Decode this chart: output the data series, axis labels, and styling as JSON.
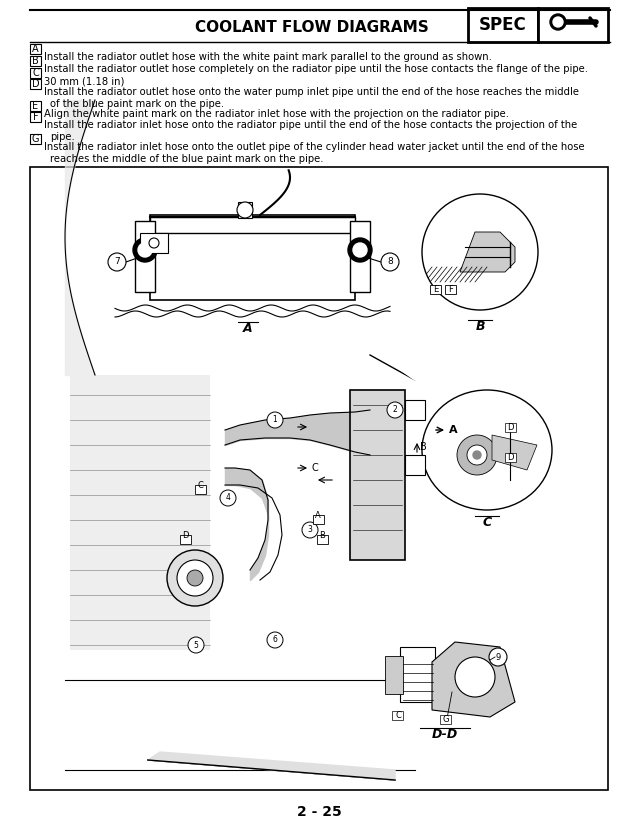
{
  "title": "COOLANT FLOW DIAGRAMS",
  "spec_label": "SPEC",
  "page_number": "2 - 25",
  "bg": "#ffffff",
  "black": "#000000",
  "gray_light": "#d8d8d8",
  "gray_mid": "#aaaaaa",
  "gray_dark": "#555555",
  "annot_lines": [
    [
      "A",
      "Install the radiator outlet hose with the white paint mark parallel to the ground as shown."
    ],
    [
      "B",
      "Install the radiator outlet hose completely on the radiator pipe until the hose contacts the flange of the pipe."
    ],
    [
      "C",
      "30 mm (1.18 in)"
    ],
    [
      "D",
      "Install the radiator outlet hose onto the water pump inlet pipe until the end of the hose reaches the middle"
    ],
    [
      "",
      "of the blue paint mark on the pipe."
    ],
    [
      "E",
      "Align the white paint mark on the radiator inlet hose with the projection on the radiator pipe."
    ],
    [
      "F",
      "Install the radiator inlet hose onto the radiator pipe until the end of the hose contacts the projection of the"
    ],
    [
      "",
      "pipe."
    ],
    [
      "G",
      "Install the radiator inlet hose onto the outlet pipe of the cylinder head water jacket until the end of the hose"
    ],
    [
      "",
      "reaches the middle of the blue paint mark on the pipe."
    ]
  ]
}
